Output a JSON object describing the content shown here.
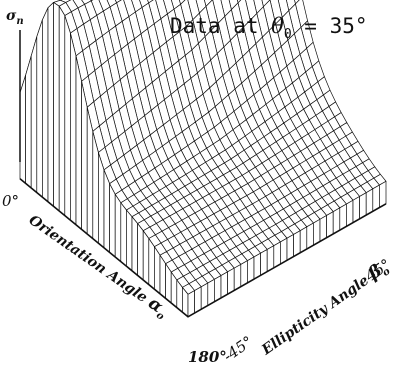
{
  "chart_data": {
    "type": "surface",
    "title": "Data at θ0 = 35°",
    "title_parts": {
      "text": "Data at ",
      "theta": "θ",
      "sub": "0",
      "value": " = 35°"
    },
    "z_label": "σn",
    "z_label_parts": {
      "sym": "σ",
      "sub": "n"
    },
    "x_axis": {
      "label": "Orientation Angle αo",
      "label_parts": {
        "text": "Orientation Angle ",
        "sym": "α",
        "sub": "o"
      },
      "range": [
        0,
        180
      ],
      "tick_labels": [
        "0°",
        "180°"
      ],
      "unit": "deg"
    },
    "y_axis": {
      "label": "Ellipticity Angle βo",
      "label_parts": {
        "text": "Ellipticity Angle ",
        "sym": "β",
        "sub": "o"
      },
      "range": [
        -45,
        45
      ],
      "tick_labels": [
        "-45°",
        "45°"
      ],
      "unit": "deg"
    },
    "z_range": [
      0,
      1
    ],
    "shape": "ridge peaked near orientation 40°, falling off toward 0° and 180°, nearly constant across ellipticity with slight dip near ellipticity 0°",
    "grid_size": [
      30,
      30
    ],
    "colors": {
      "line": "#111111",
      "background": "#ffffff"
    }
  }
}
